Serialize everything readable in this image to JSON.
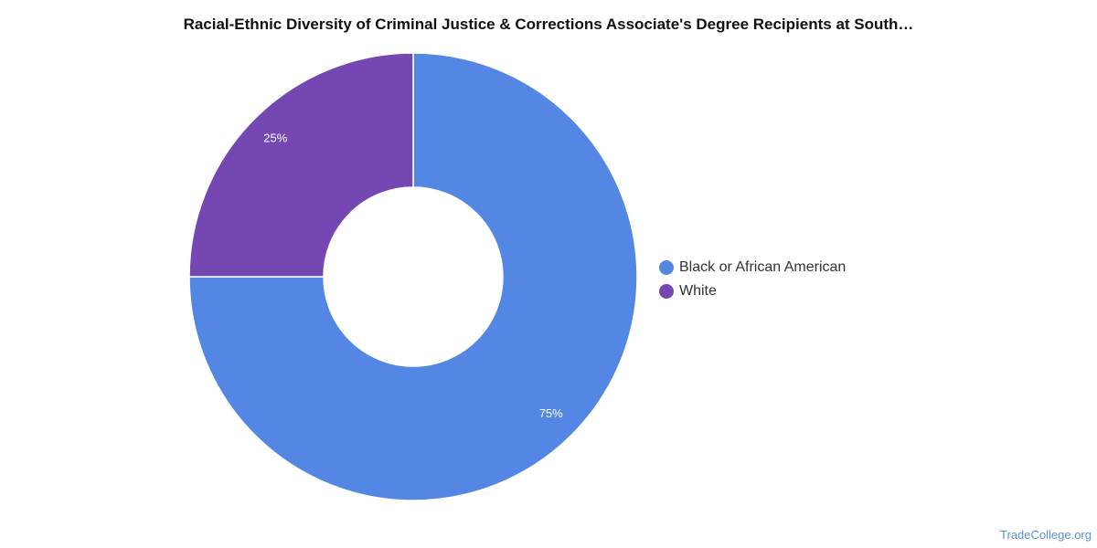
{
  "title": "Racial-Ethnic Diversity of Criminal Justice & Corrections Associate's Degree Recipients at South…",
  "chart_data": {
    "type": "pie",
    "style": "donut",
    "title": "Racial-Ethnic Diversity of Criminal Justice & Corrections Associate's Degree Recipients at South…",
    "categories": [
      "Black or African American",
      "White"
    ],
    "values": [
      75,
      25
    ],
    "labels": [
      "75%",
      "25%"
    ],
    "colors": [
      "#5487e4",
      "#7547b3"
    ],
    "legend_position": "right"
  },
  "source": "TradeCollege.org"
}
